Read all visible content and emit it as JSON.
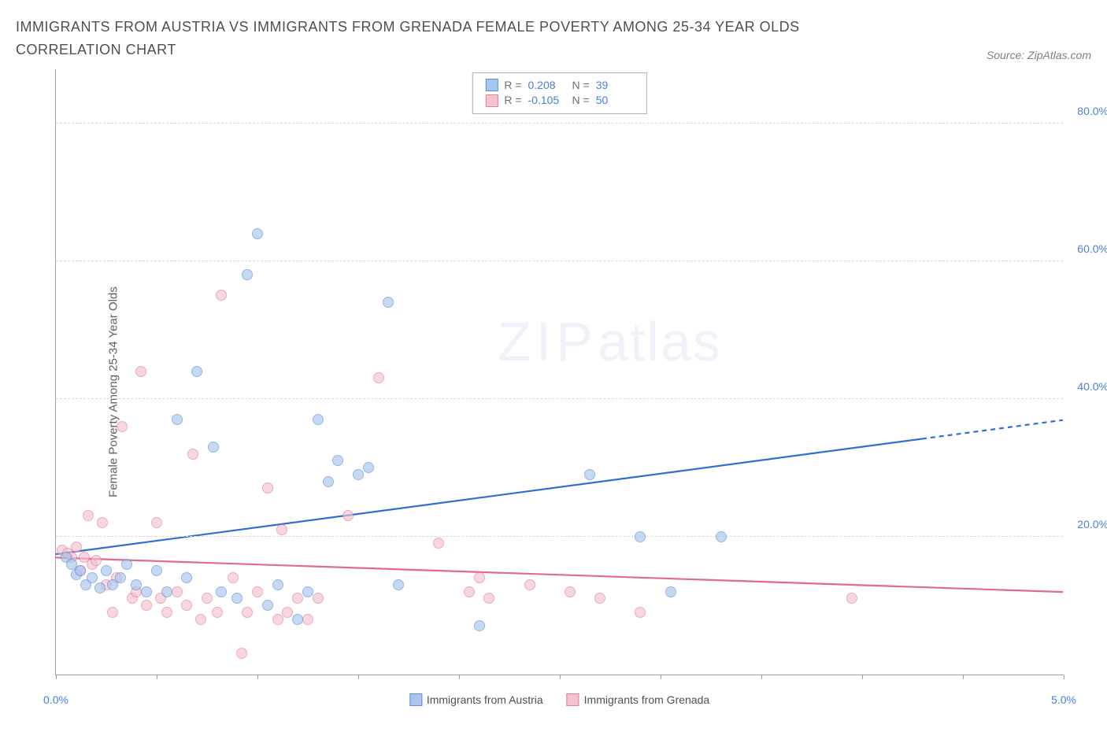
{
  "title": "IMMIGRANTS FROM AUSTRIA VS IMMIGRANTS FROM GRENADA FEMALE POVERTY AMONG 25-34 YEAR OLDS CORRELATION CHART",
  "source": "Source: ZipAtlas.com",
  "ylabel": "Female Poverty Among 25-34 Year Olds",
  "watermark_zip": "ZIP",
  "watermark_atlas": "atlas",
  "chart": {
    "type": "scatter",
    "xlim": [
      0,
      5
    ],
    "ylim": [
      0,
      88
    ],
    "xticks": [
      0.0,
      0.5,
      1.0,
      1.5,
      2.0,
      2.5,
      3.0,
      3.5,
      4.0,
      4.5,
      5.0
    ],
    "xtick_labels": {
      "0": "0.0%",
      "5": "5.0%"
    },
    "yticks": [
      20,
      40,
      60,
      80
    ],
    "ytick_labels": [
      "20.0%",
      "40.0%",
      "60.0%",
      "80.0%"
    ],
    "grid_color": "#d8d8d8",
    "axis_color": "#a0a0a0",
    "tick_label_color": "#4a80d8",
    "point_radius": 7,
    "point_opacity": 0.65,
    "background": "#ffffff"
  },
  "series": {
    "austria": {
      "label": "Immigrants from Austria",
      "fill": "#a9c6ee",
      "stroke": "#5b8fd6",
      "trend_color": "#2f6fd0",
      "trend_y0": 17.5,
      "trend_y1": 37.0,
      "trend_dash_from_x": 4.3,
      "R_label": "R =",
      "R": "0.208",
      "N_label": "N =",
      "N": "39",
      "points": [
        [
          0.05,
          17
        ],
        [
          0.08,
          16
        ],
        [
          0.1,
          14.5
        ],
        [
          0.12,
          15
        ],
        [
          0.15,
          13
        ],
        [
          0.18,
          14
        ],
        [
          0.22,
          12.5
        ],
        [
          0.25,
          15
        ],
        [
          0.28,
          13
        ],
        [
          0.32,
          14
        ],
        [
          0.35,
          16
        ],
        [
          0.4,
          13
        ],
        [
          0.45,
          12
        ],
        [
          0.5,
          15
        ],
        [
          0.55,
          12
        ],
        [
          0.6,
          37
        ],
        [
          0.65,
          14
        ],
        [
          0.7,
          44
        ],
        [
          0.78,
          33
        ],
        [
          0.82,
          12
        ],
        [
          0.9,
          11
        ],
        [
          0.95,
          58
        ],
        [
          1.0,
          64
        ],
        [
          1.05,
          10
        ],
        [
          1.1,
          13
        ],
        [
          1.2,
          8
        ],
        [
          1.25,
          12
        ],
        [
          1.3,
          37
        ],
        [
          1.35,
          28
        ],
        [
          1.4,
          31
        ],
        [
          1.5,
          29
        ],
        [
          1.55,
          30
        ],
        [
          1.65,
          54
        ],
        [
          1.7,
          13
        ],
        [
          2.1,
          7
        ],
        [
          2.65,
          29
        ],
        [
          2.9,
          20
        ],
        [
          3.05,
          12
        ],
        [
          3.3,
          20
        ]
      ]
    },
    "grenada": {
      "label": "Immigrants from Grenada",
      "fill": "#f4c3d0",
      "stroke": "#e77ba0",
      "trend_color": "#e06a92",
      "trend_y0": 17.0,
      "trend_y1": 12.0,
      "R_label": "R =",
      "R": "-0.105",
      "N_label": "N =",
      "N": "50",
      "points": [
        [
          0.03,
          18
        ],
        [
          0.06,
          17.5
        ],
        [
          0.08,
          17
        ],
        [
          0.1,
          18.5
        ],
        [
          0.12,
          15
        ],
        [
          0.14,
          17
        ],
        [
          0.16,
          23
        ],
        [
          0.18,
          16
        ],
        [
          0.2,
          16.5
        ],
        [
          0.23,
          22
        ],
        [
          0.25,
          13
        ],
        [
          0.28,
          9
        ],
        [
          0.3,
          14
        ],
        [
          0.33,
          36
        ],
        [
          0.38,
          11
        ],
        [
          0.4,
          12
        ],
        [
          0.42,
          44
        ],
        [
          0.45,
          10
        ],
        [
          0.5,
          22
        ],
        [
          0.52,
          11
        ],
        [
          0.55,
          9
        ],
        [
          0.6,
          12
        ],
        [
          0.65,
          10
        ],
        [
          0.68,
          32
        ],
        [
          0.72,
          8
        ],
        [
          0.75,
          11
        ],
        [
          0.8,
          9
        ],
        [
          0.82,
          55
        ],
        [
          0.88,
          14
        ],
        [
          0.92,
          3
        ],
        [
          0.95,
          9
        ],
        [
          1.0,
          12
        ],
        [
          1.05,
          27
        ],
        [
          1.1,
          8
        ],
        [
          1.12,
          21
        ],
        [
          1.15,
          9
        ],
        [
          1.2,
          11
        ],
        [
          1.25,
          8
        ],
        [
          1.3,
          11
        ],
        [
          1.6,
          43
        ],
        [
          1.9,
          19
        ],
        [
          2.05,
          12
        ],
        [
          2.1,
          14
        ],
        [
          2.15,
          11
        ],
        [
          2.55,
          12
        ],
        [
          2.7,
          11
        ],
        [
          2.9,
          9
        ],
        [
          3.95,
          11
        ],
        [
          2.35,
          13
        ],
        [
          1.45,
          23
        ]
      ]
    }
  }
}
